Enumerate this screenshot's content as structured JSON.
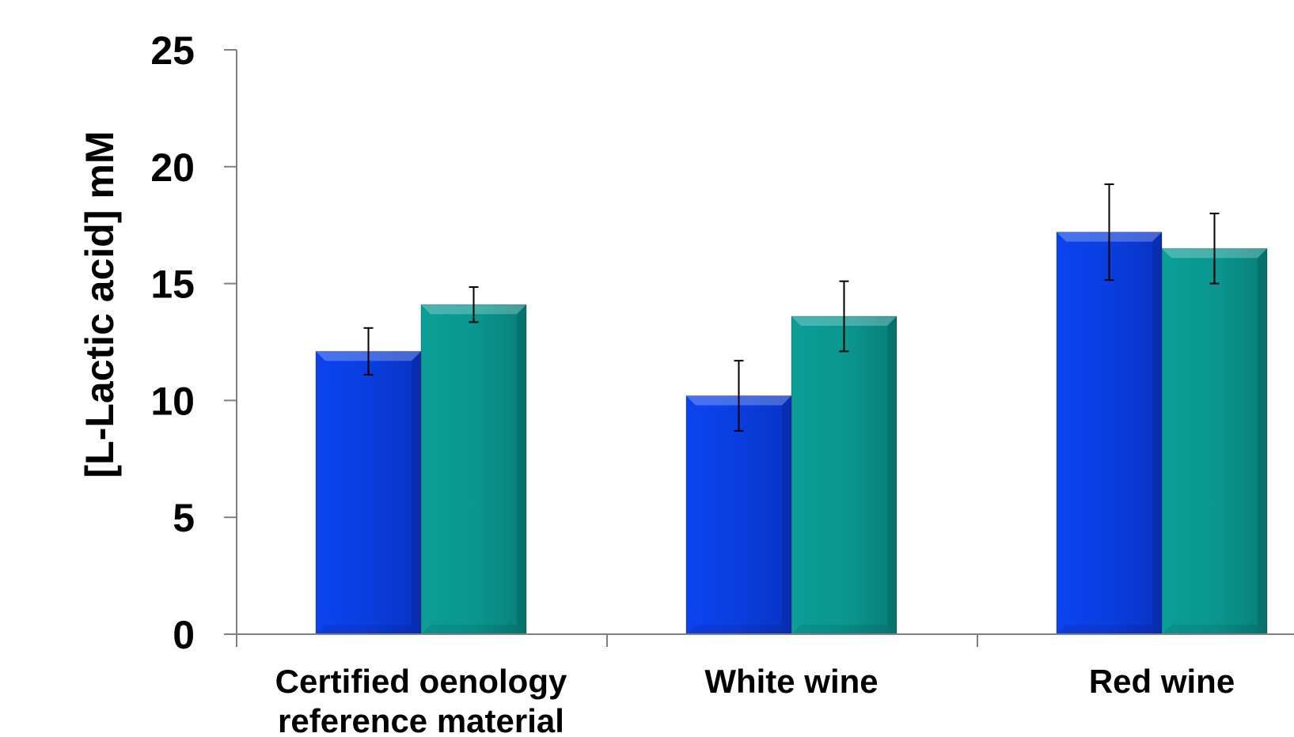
{
  "chart_data": {
    "type": "bar",
    "title": "",
    "xlabel": "",
    "ylabel": "[L-Lactic acid] mM",
    "ylim": [
      0,
      25
    ],
    "yticks": [
      0,
      5,
      10,
      15,
      20,
      25
    ],
    "grid": false,
    "legend": "none",
    "categories": [
      [
        "Certified oenology",
        "reference material"
      ],
      [
        "White wine"
      ],
      [
        "Red wine"
      ]
    ],
    "series": [
      {
        "color": "#0a3ee0",
        "values": [
          12.1,
          10.2,
          17.2
        ],
        "errors": [
          1.0,
          1.5,
          2.05
        ]
      },
      {
        "color": "#0a9790",
        "values": [
          14.1,
          13.6,
          16.5
        ],
        "errors": [
          0.75,
          1.5,
          1.5
        ]
      }
    ]
  }
}
